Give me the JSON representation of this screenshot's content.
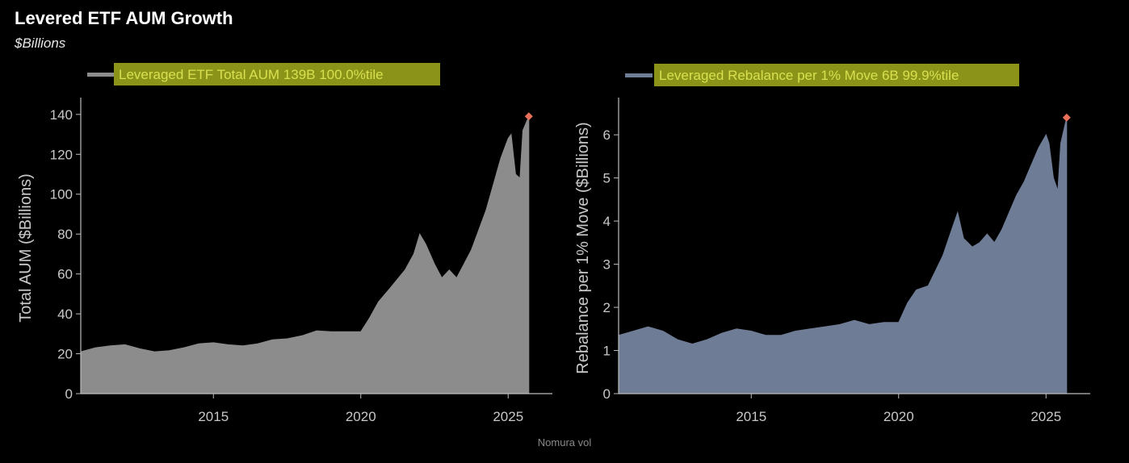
{
  "header": {
    "title": "Levered ETF AUM Growth",
    "subtitle": "$Billions"
  },
  "footer": {
    "source": "Nomura vol"
  },
  "colors": {
    "background": "#000000",
    "left_fill": "#8c8c8c",
    "right_fill": "#6e7c96",
    "legend_box": "#8b9418",
    "legend_text": "#d8e050",
    "marker": "#e8705a",
    "axis": "#bdbdbd",
    "tick_text": "#c8c8c8"
  },
  "chart_data": [
    {
      "type": "area",
      "series": [
        {
          "name": "Leveraged ETF Total AUM 139B 100.0%tile",
          "values": [
            [
              2010.5,
              21
            ],
            [
              2011.0,
              23
            ],
            [
              2011.5,
              24
            ],
            [
              2012.0,
              24.5
            ],
            [
              2012.5,
              22.5
            ],
            [
              2013.0,
              21
            ],
            [
              2013.5,
              21.5
            ],
            [
              2014.0,
              23
            ],
            [
              2014.5,
              25
            ],
            [
              2015.0,
              25.5
            ],
            [
              2015.5,
              24.5
            ],
            [
              2016.0,
              24
            ],
            [
              2016.5,
              25
            ],
            [
              2017.0,
              27
            ],
            [
              2017.5,
              27.5
            ],
            [
              2018.0,
              29
            ],
            [
              2018.5,
              31.5
            ],
            [
              2019.0,
              31
            ],
            [
              2019.5,
              31
            ],
            [
              2020.0,
              31
            ],
            [
              2020.3,
              38
            ],
            [
              2020.6,
              46
            ],
            [
              2021.0,
              53
            ],
            [
              2021.5,
              62
            ],
            [
              2021.8,
              70
            ],
            [
              2022.0,
              80
            ],
            [
              2022.2,
              75
            ],
            [
              2022.5,
              65
            ],
            [
              2022.75,
              58
            ],
            [
              2023.0,
              62
            ],
            [
              2023.25,
              58
            ],
            [
              2023.5,
              65
            ],
            [
              2023.75,
              72
            ],
            [
              2024.0,
              82
            ],
            [
              2024.25,
              92
            ],
            [
              2024.5,
              105
            ],
            [
              2024.75,
              118
            ],
            [
              2025.0,
              128
            ],
            [
              2025.1,
              130
            ],
            [
              2025.25,
              110
            ],
            [
              2025.4,
              108
            ],
            [
              2025.5,
              132
            ],
            [
              2025.7,
              139
            ]
          ]
        }
      ],
      "marker": [
        2025.7,
        139
      ],
      "xlabel": "",
      "ylabel": "Total AUM ($Billions)",
      "xlim": [
        2010.5,
        2026.5
      ],
      "ylim": [
        0,
        146
      ],
      "xticks": [
        2015,
        2020,
        2025
      ],
      "yticks": [
        0,
        20,
        40,
        60,
        80,
        100,
        120,
        140
      ],
      "grid": false,
      "legend": "top-left"
    },
    {
      "type": "area",
      "series": [
        {
          "name": "Leveraged Rebalance per 1% Move 6B 99.9%tile",
          "values": [
            [
              2010.5,
              1.35
            ],
            [
              2011.0,
              1.45
            ],
            [
              2011.5,
              1.55
            ],
            [
              2012.0,
              1.45
            ],
            [
              2012.5,
              1.25
            ],
            [
              2013.0,
              1.15
            ],
            [
              2013.5,
              1.25
            ],
            [
              2014.0,
              1.4
            ],
            [
              2014.5,
              1.5
            ],
            [
              2015.0,
              1.45
            ],
            [
              2015.5,
              1.35
            ],
            [
              2016.0,
              1.35
            ],
            [
              2016.5,
              1.45
            ],
            [
              2017.0,
              1.5
            ],
            [
              2017.5,
              1.55
            ],
            [
              2018.0,
              1.6
            ],
            [
              2018.5,
              1.7
            ],
            [
              2019.0,
              1.6
            ],
            [
              2019.5,
              1.65
            ],
            [
              2020.0,
              1.65
            ],
            [
              2020.3,
              2.1
            ],
            [
              2020.6,
              2.4
            ],
            [
              2021.0,
              2.5
            ],
            [
              2021.5,
              3.2
            ],
            [
              2021.8,
              3.8
            ],
            [
              2022.0,
              4.2
            ],
            [
              2022.2,
              3.6
            ],
            [
              2022.5,
              3.4
            ],
            [
              2022.75,
              3.5
            ],
            [
              2023.0,
              3.7
            ],
            [
              2023.25,
              3.5
            ],
            [
              2023.5,
              3.8
            ],
            [
              2023.75,
              4.2
            ],
            [
              2024.0,
              4.6
            ],
            [
              2024.25,
              4.9
            ],
            [
              2024.5,
              5.3
            ],
            [
              2024.75,
              5.7
            ],
            [
              2025.0,
              6.0
            ],
            [
              2025.1,
              5.8
            ],
            [
              2025.25,
              5.0
            ],
            [
              2025.4,
              4.7
            ],
            [
              2025.5,
              5.8
            ],
            [
              2025.7,
              6.4
            ]
          ]
        }
      ],
      "marker": [
        2025.7,
        6.4
      ],
      "xlabel": "",
      "ylabel": "Rebalance per 1% Move ($Billions)",
      "xlim": [
        2010.5,
        2026.5
      ],
      "ylim": [
        0,
        6.75
      ],
      "xticks": [
        2015,
        2020,
        2025
      ],
      "yticks": [
        0,
        1,
        2,
        3,
        4,
        5,
        6
      ],
      "grid": false,
      "legend": "top-left"
    }
  ]
}
